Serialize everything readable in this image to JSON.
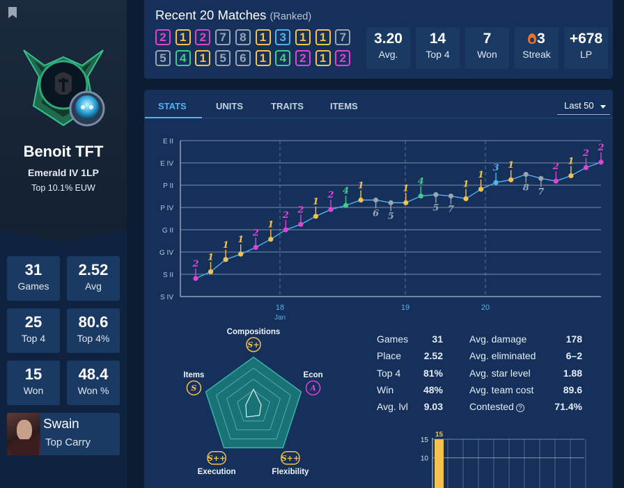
{
  "profile": {
    "summoner_name": "Benoit TFT",
    "rank": "Emerald IV 1LP",
    "rank_top": "Top 10.1% EUW",
    "stats": [
      {
        "value": "31",
        "label": "Games"
      },
      {
        "value": "2.52",
        "label": "Avg"
      },
      {
        "value": "25",
        "label": "Top 4"
      },
      {
        "value": "80.6",
        "label": "Top 4%"
      },
      {
        "value": "15",
        "label": "Won"
      },
      {
        "value": "48.4",
        "label": "Won %"
      }
    ],
    "top_carry": {
      "name": "Swain",
      "label": "Top Carry"
    }
  },
  "recent": {
    "title": "Recent 20 Matches",
    "subtitle": "(Ranked)",
    "placements_row1": [
      "2",
      "1",
      "2",
      "7",
      "8",
      "1",
      "3",
      "1",
      "1",
      "7"
    ],
    "placements_row2": [
      "5",
      "4",
      "1",
      "5",
      "6",
      "1",
      "4",
      "2",
      "1",
      "2"
    ],
    "summary": [
      {
        "value": "3.20",
        "label": "Avg."
      },
      {
        "value": "14",
        "label": "Top 4"
      },
      {
        "value": "7",
        "label": "Won"
      },
      {
        "value": "3",
        "label": "Streak",
        "icon": "flame-icon"
      },
      {
        "value": "+678",
        "label": "LP"
      }
    ]
  },
  "tabs": [
    {
      "label": "STATS",
      "active": true
    },
    {
      "label": "UNITS",
      "active": false
    },
    {
      "label": "TRAITS",
      "active": false
    },
    {
      "label": "ITEMS",
      "active": false
    }
  ],
  "filter": {
    "selected": "Last 50"
  },
  "colors": {
    "place_1": "#f5c24b",
    "place_2": "#e044d4",
    "place_3": "#52b3f0",
    "place_4": "#46c98a",
    "place_5_8": "#9aa5b1",
    "accent": "#52b3f0"
  },
  "chart_data": [
    {
      "type": "line",
      "y_ticks": [
        "E II",
        "E IV",
        "P II",
        "P IV",
        "G II",
        "G IV",
        "S II",
        "S IV"
      ],
      "x_ticks": [
        {
          "label": "18",
          "sub": "Jan"
        },
        {
          "label": "19",
          "sub": ""
        },
        {
          "label": "20",
          "sub": ""
        }
      ],
      "grid": true,
      "series": [
        {
          "rank_value": [
            1.0,
            1.5,
            2.4,
            2.8,
            3.3,
            3.9,
            4.6,
            5.0,
            5.6,
            6.1,
            6.4,
            6.8,
            6.8,
            6.6,
            6.6,
            7.1,
            7.2,
            7.1,
            6.9,
            7.6,
            8.1,
            8.3,
            8.7,
            8.4,
            8.2,
            8.6,
            9.2,
            9.6
          ],
          "placement": [
            2,
            1,
            1,
            1,
            2,
            1,
            2,
            2,
            1,
            2,
            4,
            1,
            6,
            5,
            1,
            4,
            5,
            7,
            1,
            1,
            3,
            1,
            8,
            7,
            2,
            1,
            2,
            2
          ]
        }
      ]
    },
    {
      "type": "radar",
      "axes": [
        {
          "label": "Compositions",
          "grade": "S+",
          "value": 0.36
        },
        {
          "label": "Econ",
          "grade": "A",
          "value": 0.16
        },
        {
          "label": "Flexibility",
          "grade": "S++",
          "value": 0.2
        },
        {
          "label": "Execution",
          "grade": "S++",
          "value": 0.24
        },
        {
          "label": "Items",
          "grade": "S",
          "value": 0.16
        }
      ]
    },
    {
      "type": "bar",
      "y_ticks": [
        "15",
        "10"
      ],
      "values": [
        15
      ],
      "data_labels": [
        "15"
      ],
      "ylim": [
        0,
        15
      ]
    }
  ],
  "details_left": [
    {
      "label": "Games",
      "value": "31"
    },
    {
      "label": "Place",
      "value": "2.52"
    },
    {
      "label": "Top 4",
      "value": "81%"
    },
    {
      "label": "Win",
      "value": "48%"
    },
    {
      "label": "Avg. lvl",
      "value": "9.03"
    }
  ],
  "details_right": [
    {
      "label": "Avg. damage",
      "value": "178"
    },
    {
      "label": "Avg. eliminated",
      "value": "6–2"
    },
    {
      "label": "Avg. star level",
      "value": "1.88"
    },
    {
      "label": "Avg. team cost",
      "value": "89.6"
    },
    {
      "label": "Contested",
      "value": "71.4%",
      "help": true
    }
  ]
}
